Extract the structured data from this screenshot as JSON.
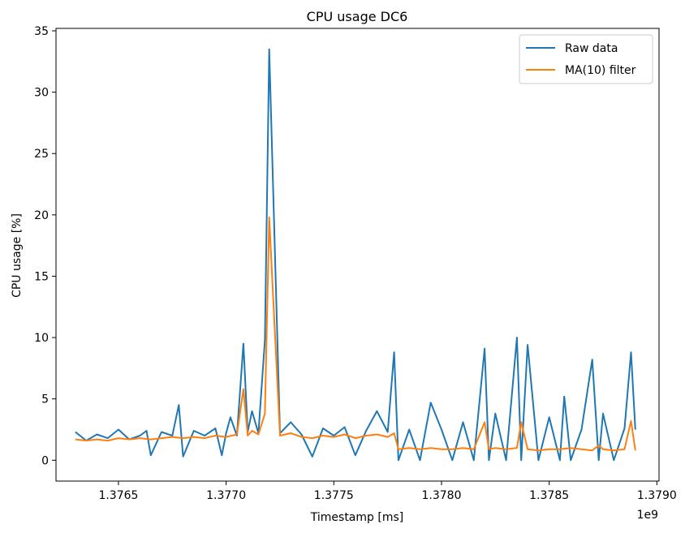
{
  "chart_data": {
    "type": "line",
    "title": "CPU usage DC6",
    "xlabel": "Timestamp [ms]",
    "ylabel": "CPU usage [%]",
    "x_offset_label": "1e9",
    "xlim": [
      1.37621,
      1.37901
    ],
    "ylim": [
      -1.7,
      35.2
    ],
    "x_ticks": [
      {
        "value": 1.3765,
        "label": "1.3765"
      },
      {
        "value": 1.377,
        "label": "1.3770"
      },
      {
        "value": 1.3775,
        "label": "1.3775"
      },
      {
        "value": 1.378,
        "label": "1.3780"
      },
      {
        "value": 1.3785,
        "label": "1.3785"
      },
      {
        "value": 1.379,
        "label": "1.3790"
      }
    ],
    "y_ticks": [
      {
        "value": 0,
        "label": "0"
      },
      {
        "value": 5,
        "label": "5"
      },
      {
        "value": 10,
        "label": "10"
      },
      {
        "value": 15,
        "label": "15"
      },
      {
        "value": 20,
        "label": "20"
      },
      {
        "value": 25,
        "label": "25"
      },
      {
        "value": 30,
        "label": "30"
      },
      {
        "value": 35,
        "label": "35"
      }
    ],
    "grid": false,
    "legend_position": "top-right",
    "series": [
      {
        "name": "Raw data",
        "color": "#1f77b4",
        "x": [
          1.3763,
          1.37635,
          1.3764,
          1.37645,
          1.3765,
          1.37655,
          1.3766,
          1.37663,
          1.37665,
          1.3767,
          1.37675,
          1.37678,
          1.3768,
          1.37685,
          1.3769,
          1.37695,
          1.37698,
          1.377,
          1.37702,
          1.37705,
          1.37708,
          1.3771,
          1.37712,
          1.37715,
          1.37718,
          1.3772,
          1.37725,
          1.3773,
          1.37735,
          1.3774,
          1.37745,
          1.3775,
          1.37755,
          1.3776,
          1.37765,
          1.3777,
          1.37775,
          1.37778,
          1.3778,
          1.37785,
          1.3779,
          1.37795,
          1.378,
          1.37805,
          1.3781,
          1.37815,
          1.3782,
          1.37822,
          1.37825,
          1.3783,
          1.37835,
          1.37837,
          1.3784,
          1.37845,
          1.3785,
          1.37855,
          1.37857,
          1.3786,
          1.37865,
          1.3787,
          1.37873,
          1.37875,
          1.3788,
          1.37885,
          1.37888,
          1.3789
        ],
        "y": [
          2.3,
          1.6,
          2.1,
          1.8,
          2.5,
          1.7,
          2.0,
          2.4,
          0.4,
          2.3,
          2.0,
          4.5,
          0.3,
          2.4,
          2.0,
          2.6,
          0.4,
          2.2,
          3.5,
          2.0,
          9.5,
          2.3,
          4.0,
          2.2,
          9.8,
          33.5,
          2.2,
          3.1,
          2.1,
          0.3,
          2.6,
          2.0,
          2.7,
          0.4,
          2.4,
          4.0,
          2.3,
          8.8,
          0,
          2.5,
          0,
          4.7,
          2.5,
          0,
          3.1,
          0,
          9.1,
          0,
          3.8,
          0,
          10.0,
          0,
          9.4,
          0,
          3.5,
          0,
          5.2,
          0,
          2.5,
          8.2,
          0,
          3.8,
          0,
          2.6,
          8.8,
          2.5
        ]
      },
      {
        "name": "MA(10) filter",
        "color": "#ff7f0e",
        "x": [
          1.3763,
          1.37635,
          1.3764,
          1.37645,
          1.3765,
          1.37655,
          1.3766,
          1.37665,
          1.3767,
          1.37675,
          1.3768,
          1.37685,
          1.3769,
          1.37695,
          1.377,
          1.37705,
          1.37708,
          1.3771,
          1.37712,
          1.37715,
          1.37718,
          1.3772,
          1.37725,
          1.3773,
          1.37735,
          1.3774,
          1.37745,
          1.3775,
          1.37755,
          1.3776,
          1.37765,
          1.3777,
          1.37775,
          1.37778,
          1.3778,
          1.37785,
          1.3779,
          1.37795,
          1.378,
          1.37805,
          1.3781,
          1.37815,
          1.3782,
          1.37822,
          1.37825,
          1.3783,
          1.37835,
          1.37837,
          1.3784,
          1.37845,
          1.3785,
          1.37855,
          1.3786,
          1.37865,
          1.3787,
          1.37873,
          1.37875,
          1.3788,
          1.37885,
          1.37888,
          1.3789
        ],
        "y": [
          1.7,
          1.6,
          1.7,
          1.6,
          1.8,
          1.7,
          1.8,
          1.7,
          1.8,
          1.9,
          1.8,
          1.9,
          1.8,
          2.0,
          1.9,
          2.1,
          5.8,
          2.0,
          2.4,
          2.1,
          3.8,
          19.8,
          2.0,
          2.2,
          1.9,
          1.8,
          2.0,
          1.9,
          2.1,
          1.8,
          2.0,
          2.1,
          1.9,
          2.2,
          0.9,
          1.0,
          0.9,
          1.0,
          0.9,
          0.9,
          1.0,
          0.9,
          3.1,
          0.9,
          1.0,
          0.9,
          1.0,
          3.1,
          0.9,
          0.8,
          0.9,
          0.9,
          1.0,
          0.9,
          0.8,
          1.2,
          0.9,
          0.8,
          0.9,
          3.2,
          0.8
        ]
      }
    ]
  }
}
